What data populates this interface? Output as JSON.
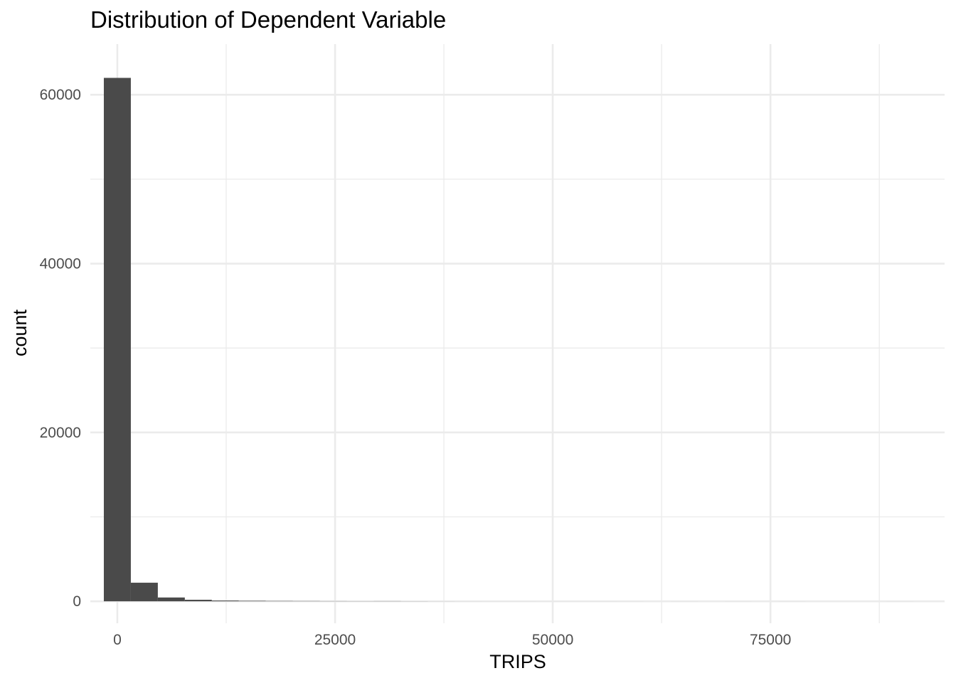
{
  "chart_data": {
    "type": "bar",
    "subtype": "histogram",
    "title": "Distribution of Dependent Variable",
    "xlabel": "TRIPS",
    "ylabel": "count",
    "xlim": [
      -3100,
      95000
    ],
    "ylim": [
      -2600,
      66000
    ],
    "x_ticks": [
      0,
      25000,
      50000,
      75000
    ],
    "x_tick_labels": [
      "0",
      "25000",
      "50000",
      "75000"
    ],
    "y_ticks": [
      0,
      20000,
      40000,
      60000
    ],
    "y_tick_labels": [
      "0",
      "20000",
      "40000",
      "60000"
    ],
    "x_minor_ticks": [
      -12500,
      12500,
      37500,
      62500,
      87500
    ],
    "y_minor_ticks": [
      10000,
      30000,
      50000
    ],
    "grid": true,
    "legend": "none",
    "bar_color": "#4a4a4a",
    "grid_color": "#ebebeb",
    "bins": [
      {
        "x0": -1550,
        "x1": 1550,
        "count": 62000
      },
      {
        "x0": 1550,
        "x1": 4650,
        "count": 2200
      },
      {
        "x0": 4650,
        "x1": 7750,
        "count": 450
      },
      {
        "x0": 7750,
        "x1": 10850,
        "count": 180
      },
      {
        "x0": 10850,
        "x1": 13950,
        "count": 90
      },
      {
        "x0": 13950,
        "x1": 17050,
        "count": 60
      },
      {
        "x0": 17050,
        "x1": 20150,
        "count": 40
      },
      {
        "x0": 20150,
        "x1": 23250,
        "count": 30
      },
      {
        "x0": 23250,
        "x1": 26350,
        "count": 20
      },
      {
        "x0": 26350,
        "x1": 29450,
        "count": 15
      },
      {
        "x0": 29450,
        "x1": 32550,
        "count": 20
      },
      {
        "x0": 32550,
        "x1": 35650,
        "count": 10
      },
      {
        "x0": 35650,
        "x1": 38750,
        "count": 5
      },
      {
        "x0": 38750,
        "x1": 41850,
        "count": 3
      },
      {
        "x0": 41850,
        "x1": 44950,
        "count": 2
      },
      {
        "x0": 44950,
        "x1": 48050,
        "count": 2
      },
      {
        "x0": 48050,
        "x1": 51150,
        "count": 1
      },
      {
        "x0": 51150,
        "x1": 54250,
        "count": 1
      },
      {
        "x0": 54250,
        "x1": 57350,
        "count": 2
      },
      {
        "x0": 57350,
        "x1": 60450,
        "count": 1
      },
      {
        "x0": 60450,
        "x1": 63550,
        "count": 0
      },
      {
        "x0": 63550,
        "x1": 66650,
        "count": 1
      },
      {
        "x0": 66650,
        "x1": 69750,
        "count": 0
      },
      {
        "x0": 69750,
        "x1": 72850,
        "count": 1
      },
      {
        "x0": 72850,
        "x1": 75950,
        "count": 0
      },
      {
        "x0": 75950,
        "x1": 79050,
        "count": 1
      },
      {
        "x0": 79050,
        "x1": 82150,
        "count": 0
      },
      {
        "x0": 82150,
        "x1": 85250,
        "count": 0
      },
      {
        "x0": 85250,
        "x1": 88350,
        "count": 0
      },
      {
        "x0": 88350,
        "x1": 91450,
        "count": 1
      }
    ]
  }
}
